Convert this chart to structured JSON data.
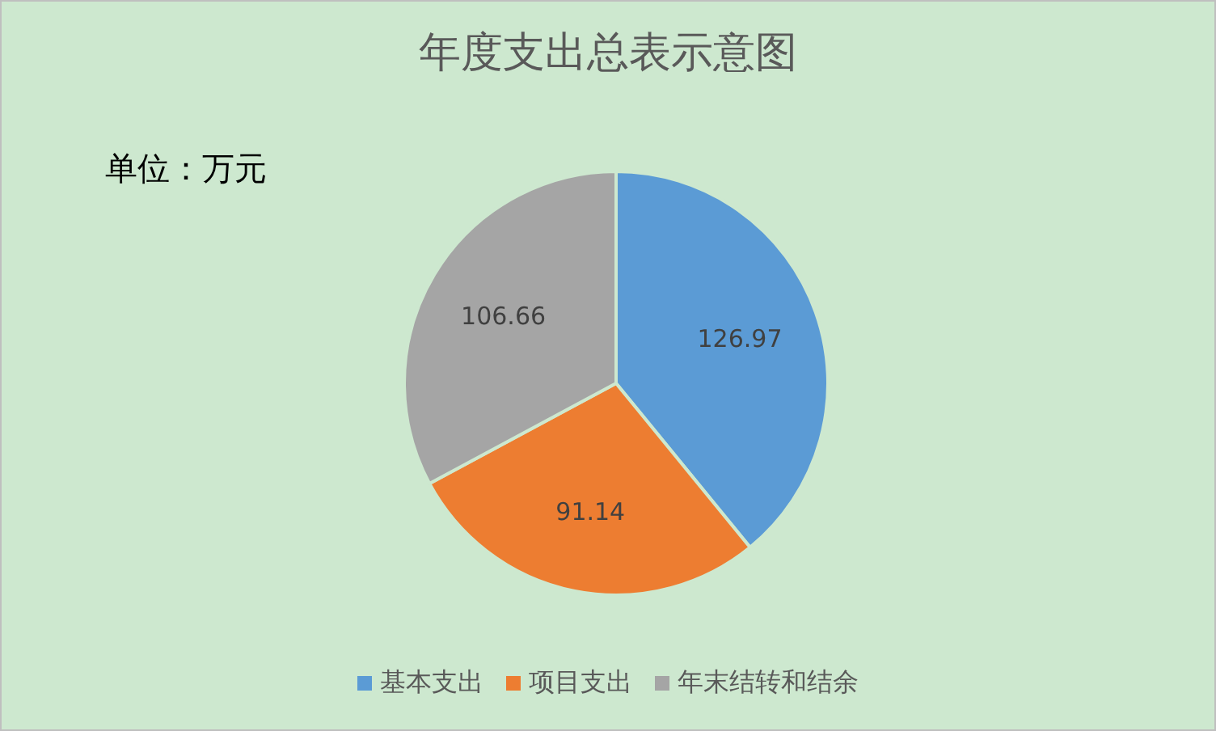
{
  "chart_data": {
    "type": "pie",
    "title": "年度支出总表示意图",
    "annotations": [
      "单位：万元"
    ],
    "categories": [
      "基本支出",
      "项目支出",
      "年末结转和结余"
    ],
    "values": [
      126.97,
      91.14,
      106.66
    ],
    "colors": [
      "#5b9bd5",
      "#ed7d31",
      "#a5a5a5"
    ],
    "data_labels": true,
    "legend": "bottom"
  }
}
